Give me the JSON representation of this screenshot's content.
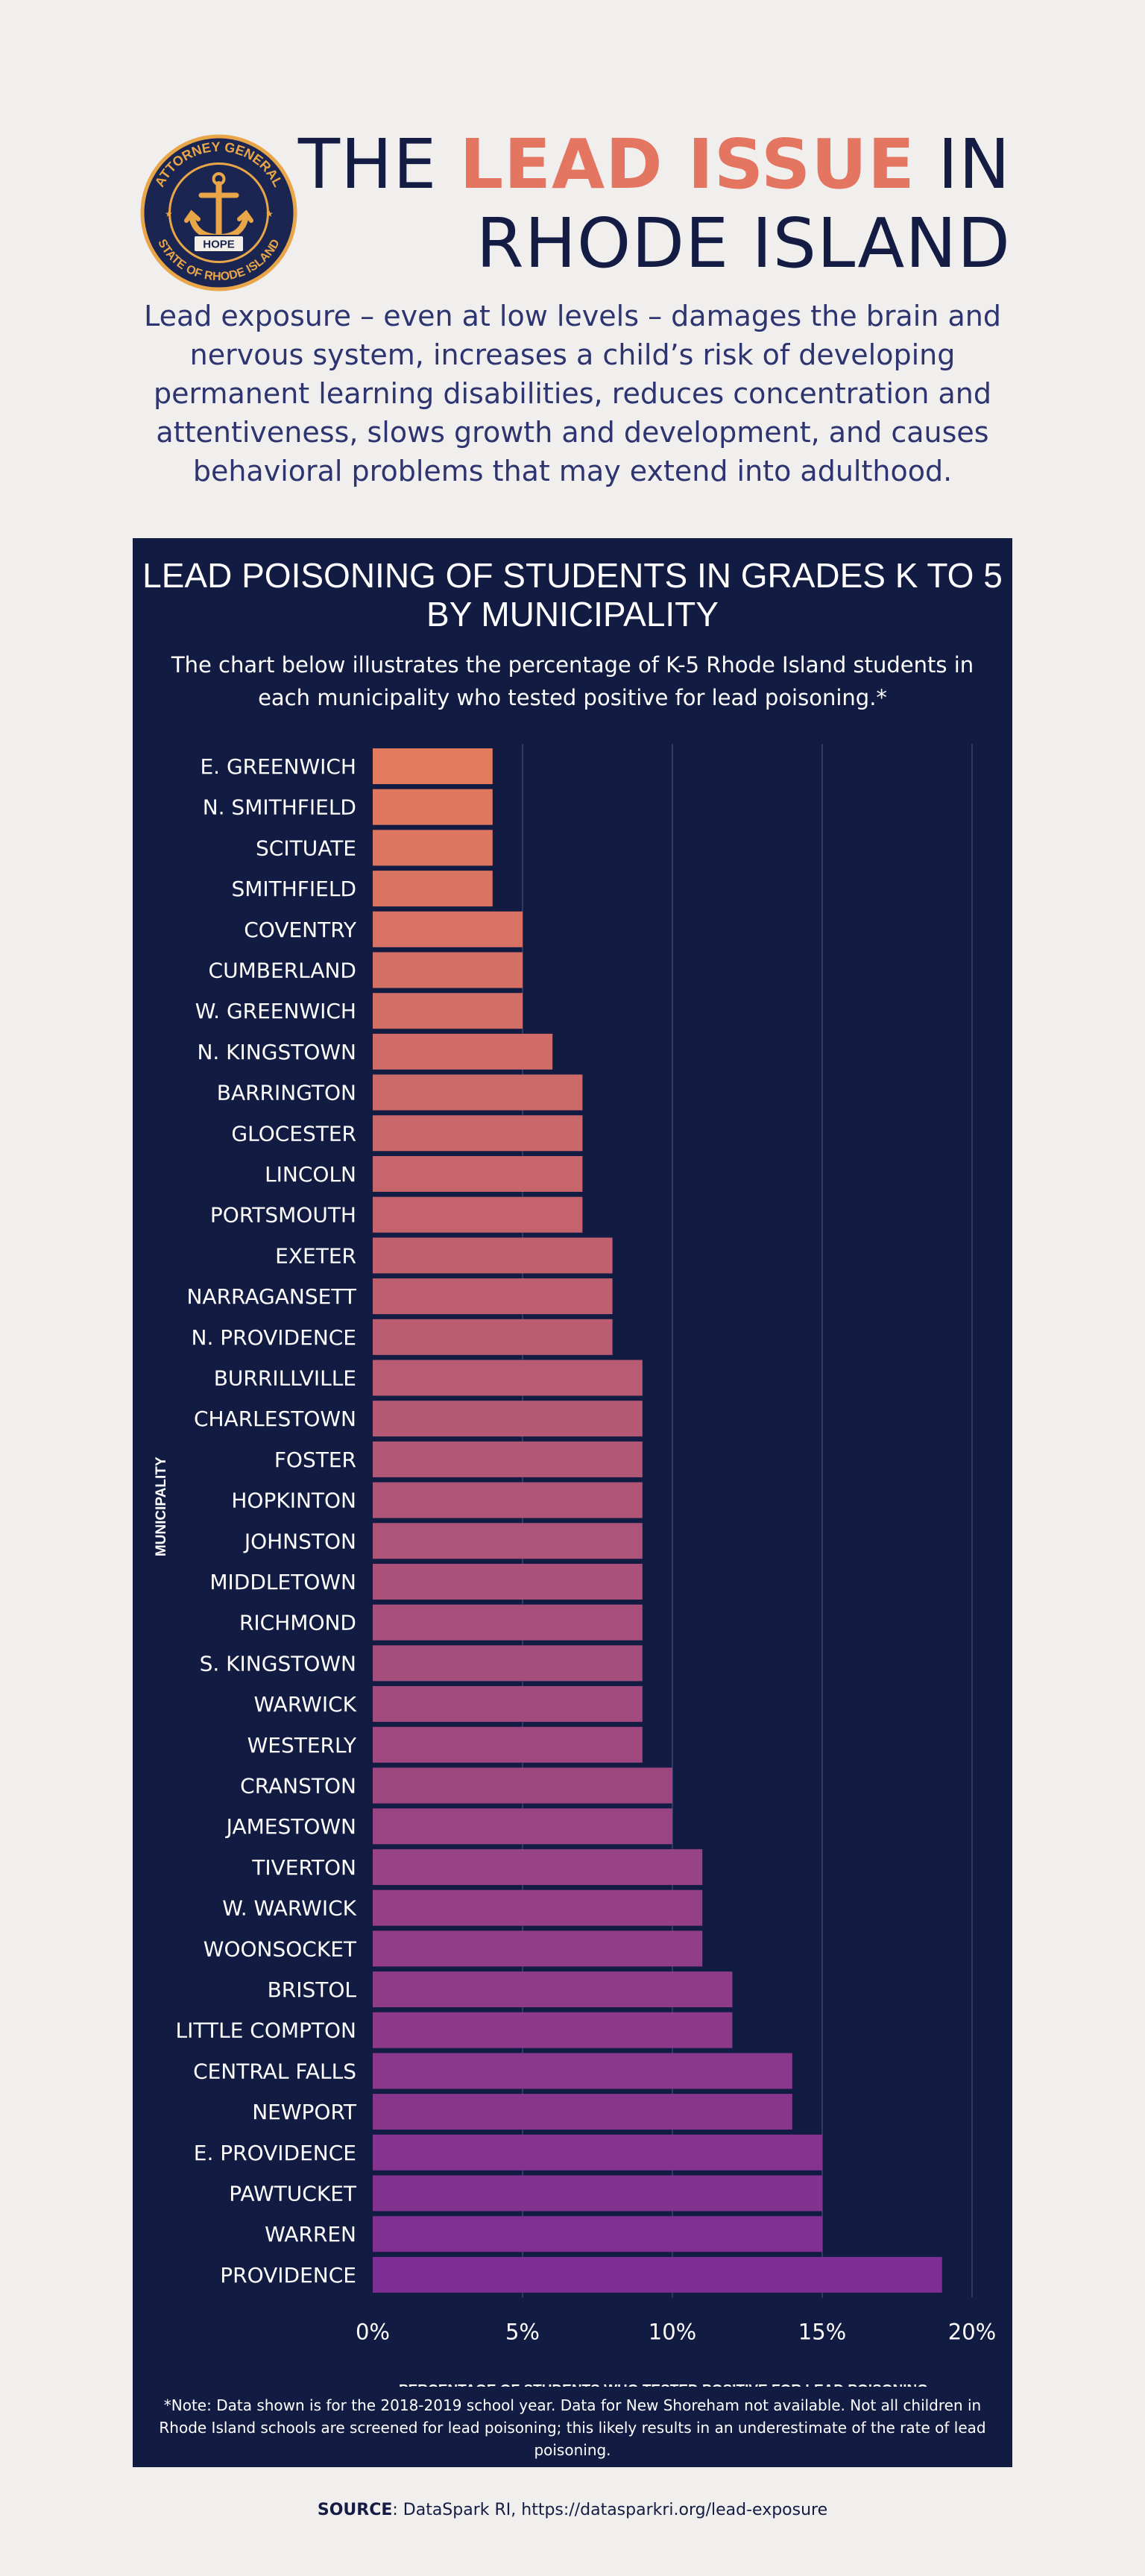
{
  "header": {
    "title_before": "THE ",
    "title_accent": "LEAD ISSUE",
    "title_after": " IN",
    "title_line2": "RHODE ISLAND",
    "intro": "Lead exposure – even at low levels – damages the brain and nervous system, increases a child’s risk of developing permanent learning disabilities, reduces concentration and attentiveness, slows growth and development, and causes behavioral problems that may extend into adulthood."
  },
  "seal": {
    "top_text": "ATTORNEY GENERAL",
    "bottom_text": "STATE OF RHODE ISLAND",
    "banner": "HOPE"
  },
  "chart_data": {
    "type": "bar",
    "orientation": "horizontal",
    "title": "LEAD POISONING OF STUDENTS IN GRADES K TO 5 BY MUNICIPALITY",
    "subtitle": "The chart below illustrates the percentage of K-5 Rhode Island students in each municipality who tested positive for lead poisoning.*",
    "xlabel": "PERCENTAGE OF STUDENTS WHO TESTED POSITIVE FOR LEAD POISONING",
    "ylabel": "MUNICIPALITY",
    "xlim": [
      0,
      20
    ],
    "xticks": [
      0,
      5,
      10,
      15,
      20
    ],
    "xtick_labels": [
      "0%",
      "5%",
      "10%",
      "15%",
      "20%"
    ],
    "grid": "vertical",
    "categories": [
      "E. GREENWICH",
      "N. SMITHFIELD",
      "SCITUATE",
      "SMITHFIELD",
      "COVENTRY",
      "CUMBERLAND",
      "W. GREENWICH",
      "N. KINGSTOWN",
      "BARRINGTON",
      "GLOCESTER",
      "LINCOLN",
      "PORTSMOUTH",
      "EXETER",
      "NARRAGANSETT",
      "N. PROVIDENCE",
      "BURRILLVILLE",
      "CHARLESTOWN",
      "FOSTER",
      "HOPKINTON",
      "JOHNSTON",
      "MIDDLETOWN",
      "RICHMOND",
      "S. KINGSTOWN",
      "WARWICK",
      "WESTERLY",
      "CRANSTON",
      "JAMESTOWN",
      "TIVERTON",
      "W. WARWICK",
      "WOONSOCKET",
      "BRISTOL",
      "LITTLE COMPTON",
      "CENTRAL FALLS",
      "NEWPORT",
      "E. PROVIDENCE",
      "PAWTUCKET",
      "WARREN",
      "PROVIDENCE"
    ],
    "values": [
      4,
      4,
      4,
      4,
      5,
      5,
      5,
      6,
      7,
      7,
      7,
      7,
      8,
      8,
      8,
      9,
      9,
      9,
      9,
      9,
      9,
      9,
      9,
      9,
      9,
      10,
      10,
      11,
      11,
      11,
      12,
      12,
      14,
      14,
      15,
      15,
      15,
      19
    ],
    "color_start": "#e27a5e",
    "color_end": "#7c2e92",
    "background": "#121b42"
  },
  "footnote": "*Note: Data shown is for the 2018-2019 school year. Data for New Shoreham not available. Not all children in Rhode Island schools are screened for lead poisoning; this likely results in an underestimate of the rate of lead poisoning.",
  "source": {
    "label": "SOURCE",
    "text": ": DataSpark RI, https://datasparkri.org/lead-exposure"
  }
}
